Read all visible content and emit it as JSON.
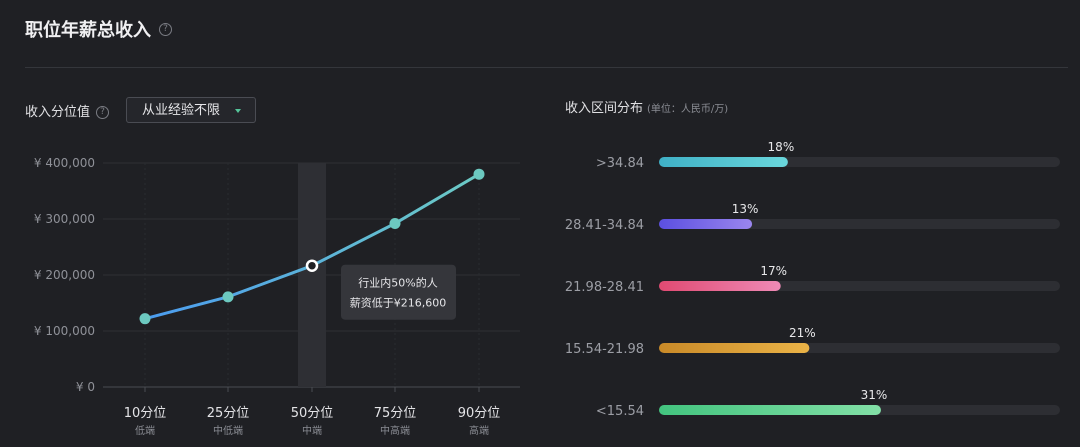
{
  "header": {
    "title": "职位年薪总收入",
    "help_icon": "?"
  },
  "left_panel": {
    "label": "收入分位值",
    "help_icon": "?",
    "dropdown_value": "从业经验不限"
  },
  "right_panel": {
    "title": "收入区间分布",
    "unit": "(单位：人民币/万)"
  },
  "chart_data": [
    {
      "type": "line",
      "title": "",
      "categories": [
        "10分位",
        "25分位",
        "50分位",
        "75分位",
        "90分位"
      ],
      "category_sublabels": [
        "低端",
        "中低端",
        "中端",
        "中高端",
        "高端"
      ],
      "y_tick_labels": [
        "¥ 400,000",
        "¥ 300,000",
        "¥ 200,000",
        "¥ 100,000",
        "¥ 0"
      ],
      "y_ticks": [
        400000,
        300000,
        200000,
        100000,
        0
      ],
      "ylim": [
        0,
        400000
      ],
      "series": [
        {
          "values": [
            122000,
            161000,
            216600,
            292000,
            380000
          ]
        }
      ],
      "highlight_index": 2,
      "tooltip": {
        "line1": "行业内50%的人",
        "line2": "薪资低于¥216,600"
      },
      "colors": {
        "line_start": "#4b9cf0",
        "line_end": "#6ccac4",
        "marker": "#6cc9c0"
      }
    },
    {
      "type": "bar",
      "orientation": "horizontal",
      "categories": [
        ">34.84",
        "28.41-34.84",
        "21.98-28.41",
        "15.54-21.98",
        "<15.54"
      ],
      "values": [
        18,
        13,
        17,
        21,
        31
      ],
      "value_labels": [
        "18%",
        "13%",
        "17%",
        "21%",
        "31%"
      ],
      "xlim": [
        0,
        56
      ],
      "colors": [
        [
          "#3fb0c6",
          "#6ad7dc"
        ],
        [
          "#5b4fe0",
          "#9a86ee"
        ],
        [
          "#e04a72",
          "#ef8ab6"
        ],
        [
          "#c98a28",
          "#eab347"
        ],
        [
          "#43c47f",
          "#82dfa6"
        ]
      ],
      "track_color": "#2d2e33"
    }
  ]
}
